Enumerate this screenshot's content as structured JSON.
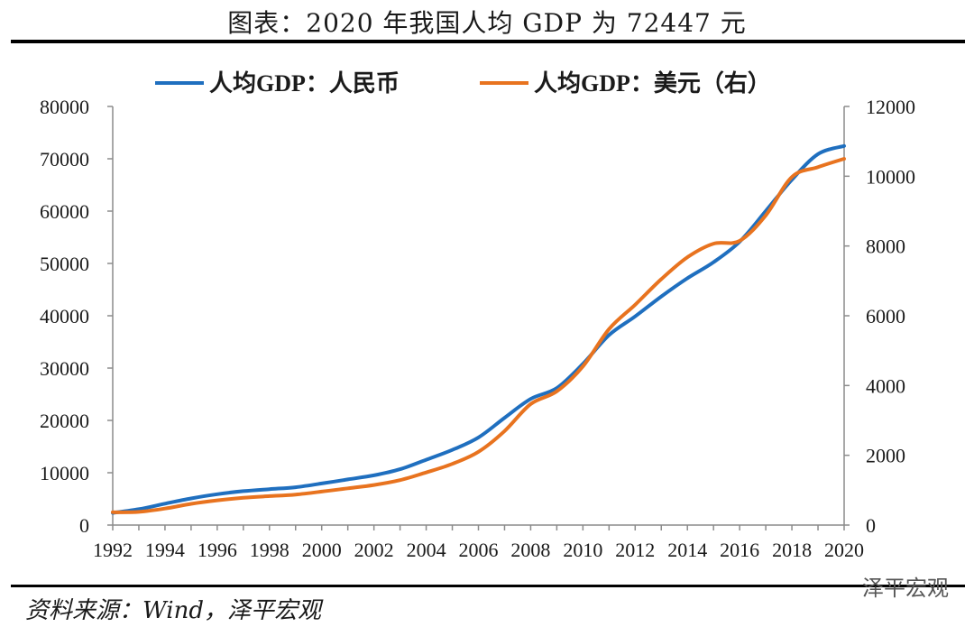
{
  "title": "图表：2020 年我国人均 GDP 为 72447 元",
  "source": "资料来源：Wind，泽平宏观",
  "watermark": "泽平宏观",
  "chart_data": {
    "type": "line",
    "x": [
      1992,
      1993,
      1994,
      1995,
      1996,
      1997,
      1998,
      1999,
      2000,
      2001,
      2002,
      2003,
      2004,
      2005,
      2006,
      2007,
      2008,
      2009,
      2010,
      2011,
      2012,
      2013,
      2014,
      2015,
      2016,
      2017,
      2018,
      2019,
      2020
    ],
    "series": [
      {
        "name": "人均GDP：人民币",
        "axis": "left",
        "color": "#1f6fbf",
        "values": [
          2334,
          3027,
          4081,
          5091,
          5898,
          6481,
          6860,
          7229,
          7942,
          8717,
          9506,
          10666,
          12487,
          14368,
          16738,
          20494,
          24100,
          26180,
          30808,
          36302,
          39874,
          43684,
          47173,
          50237,
          54139,
          60014,
          66006,
          70892,
          72447
        ]
      },
      {
        "name": "人均GDP：美元（右）",
        "axis": "right",
        "color": "#e8731f",
        "values": [
          366,
          377,
          474,
          609,
          709,
          781,
          829,
          873,
          959,
          1053,
          1149,
          1289,
          1509,
          1753,
          2099,
          2694,
          3468,
          3832,
          4550,
          5618,
          6316,
          7050,
          7678,
          8067,
          8147,
          8879,
          9977,
          10262,
          10500
        ]
      }
    ],
    "title": "图表：2020 年我国人均 GDP 为 72447 元",
    "xlabel": "",
    "ylabel": "",
    "xlim": [
      1992,
      2020
    ],
    "ylim_left": [
      0,
      80000
    ],
    "ylim_right": [
      0,
      12000
    ],
    "xticks": [
      "1992",
      "1994",
      "1996",
      "1998",
      "2000",
      "2002",
      "2004",
      "2006",
      "2008",
      "2010",
      "2012",
      "2014",
      "2016",
      "2018",
      "2020"
    ],
    "yticks_left": [
      "0",
      "10000",
      "20000",
      "30000",
      "40000",
      "50000",
      "60000",
      "70000",
      "80000"
    ],
    "yticks_right": [
      "0",
      "2000",
      "4000",
      "6000",
      "8000",
      "10000",
      "12000"
    ],
    "legend_position": "top-center",
    "grid": false
  }
}
